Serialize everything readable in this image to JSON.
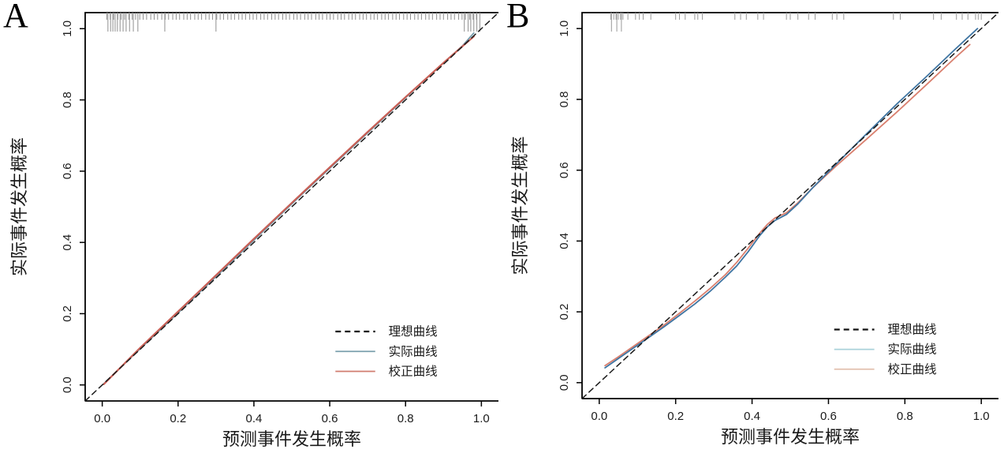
{
  "figure": {
    "background": "#ffffff",
    "panel_letters": [
      "A",
      "B"
    ]
  },
  "chart_data": [
    {
      "type": "line",
      "panel_label": "A",
      "xlabel": "预测事件发生概率",
      "ylabel": "实际事件发生概率",
      "xlim": [
        0,
        1
      ],
      "ylim": [
        0,
        1
      ],
      "grid": false,
      "ticks": {
        "values": [
          0.0,
          0.2,
          0.4,
          0.6,
          0.8,
          1.0
        ],
        "labels": [
          "0.0",
          "0.2",
          "0.4",
          "0.6",
          "0.8",
          "1.0"
        ]
      },
      "rug": {
        "color": "#8f8f8f",
        "short": [
          0.012,
          0.021,
          0.03,
          0.041,
          0.05,
          0.059,
          0.07,
          0.079,
          0.088,
          0.099,
          0.108,
          0.117,
          0.128,
          0.137,
          0.146,
          0.157,
          0.166,
          0.175,
          0.186,
          0.195,
          0.204,
          0.215,
          0.224,
          0.233,
          0.244,
          0.253,
          0.262,
          0.273,
          0.282,
          0.291,
          0.302,
          0.311,
          0.32,
          0.331,
          0.34,
          0.349,
          0.36,
          0.369,
          0.378,
          0.389,
          0.398,
          0.407,
          0.418,
          0.427,
          0.436,
          0.447,
          0.456,
          0.465,
          0.476,
          0.485,
          0.494,
          0.505,
          0.514,
          0.523,
          0.534,
          0.543,
          0.552,
          0.563,
          0.572,
          0.581,
          0.592,
          0.601,
          0.61,
          0.621,
          0.63,
          0.639,
          0.65,
          0.659,
          0.668,
          0.679,
          0.688,
          0.697,
          0.708,
          0.717,
          0.726,
          0.737,
          0.746,
          0.755,
          0.766,
          0.775,
          0.784,
          0.795,
          0.804,
          0.813,
          0.824,
          0.833,
          0.842,
          0.853,
          0.862,
          0.871,
          0.882,
          0.891,
          0.9,
          0.911,
          0.92,
          0.929,
          0.94,
          0.949,
          0.958,
          0.969,
          0.978,
          0.987
        ],
        "long": [
          0.015,
          0.022,
          0.028,
          0.034,
          0.04,
          0.047,
          0.055,
          0.063,
          0.072,
          0.082,
          0.094,
          0.165,
          0.3,
          0.955,
          0.965,
          0.972,
          0.98,
          0.988,
          0.996
        ]
      },
      "series": [
        {
          "name": "实际曲线",
          "role": "actual",
          "color": "#6d96a8",
          "width": 1.6,
          "dash": false,
          "points": [
            [
              0.004,
              0.004
            ],
            [
              0.1,
              0.101
            ],
            [
              0.2,
              0.202
            ],
            [
              0.3,
              0.304
            ],
            [
              0.4,
              0.406
            ],
            [
              0.5,
              0.508
            ],
            [
              0.6,
              0.608
            ],
            [
              0.7,
              0.707
            ],
            [
              0.8,
              0.806
            ],
            [
              0.9,
              0.904
            ],
            [
              0.95,
              0.952
            ],
            [
              0.98,
              0.988
            ]
          ]
        },
        {
          "name": "校正曲线",
          "role": "corrected",
          "color": "#c95f55",
          "width": 2.2,
          "dash": false,
          "points": [
            [
              0.004,
              0.002
            ],
            [
              0.1,
              0.104
            ],
            [
              0.2,
              0.206
            ],
            [
              0.3,
              0.308
            ],
            [
              0.4,
              0.41
            ],
            [
              0.5,
              0.511
            ],
            [
              0.6,
              0.611
            ],
            [
              0.7,
              0.71
            ],
            [
              0.8,
              0.808
            ],
            [
              0.9,
              0.904
            ],
            [
              0.98,
              0.978
            ]
          ]
        },
        {
          "name": "理想曲线",
          "role": "ideal",
          "color": "#1a1a1a",
          "width": 1.5,
          "dash": true,
          "points": [
            [
              -0.045,
              -0.045
            ],
            [
              1.045,
              1.045
            ]
          ]
        }
      ],
      "legend": {
        "position": "bottom-right",
        "entries": [
          {
            "label": "理想曲线",
            "color": "#111111",
            "dash": true
          },
          {
            "label": "实际曲线",
            "color": "#7ba0ad",
            "dash": false
          },
          {
            "label": "校正曲线",
            "color": "#d07c6f",
            "dash": false
          }
        ]
      }
    },
    {
      "type": "line",
      "panel_label": "B",
      "xlabel": "预测事件发生概率",
      "ylabel": "实际事件发生概率",
      "xlim": [
        0,
        1
      ],
      "ylim": [
        0,
        1
      ],
      "grid": false,
      "ticks": {
        "values": [
          0.0,
          0.2,
          0.4,
          0.6,
          0.8,
          1.0
        ],
        "labels": [
          "0.0",
          "0.2",
          "0.4",
          "0.6",
          "0.8",
          "1.0"
        ]
      },
      "rug": {
        "color": "#9a9a9a",
        "short": [
          0.03,
          0.038,
          0.044,
          0.05,
          0.056,
          0.062,
          0.075,
          0.095,
          0.105,
          0.115,
          0.135,
          0.2,
          0.21,
          0.225,
          0.25,
          0.258,
          0.27,
          0.355,
          0.37,
          0.385,
          0.415,
          0.43,
          0.49,
          0.5,
          0.52,
          0.548,
          0.565,
          0.61,
          0.622,
          0.64,
          0.77,
          0.788,
          0.875,
          0.895,
          0.935,
          0.95,
          0.965,
          0.985,
          0.992,
          1.0
        ],
        "long": [
          0.032,
          0.046,
          0.058
        ]
      },
      "series": [
        {
          "name": "校正曲线",
          "role": "corrected",
          "color": "#d97f6e",
          "width": 1.8,
          "dash": false,
          "points": [
            [
              0.015,
              0.048
            ],
            [
              0.05,
              0.073
            ],
            [
              0.09,
              0.103
            ],
            [
              0.13,
              0.133
            ],
            [
              0.17,
              0.163
            ],
            [
              0.21,
              0.196
            ],
            [
              0.25,
              0.23
            ],
            [
              0.29,
              0.266
            ],
            [
              0.33,
              0.305
            ],
            [
              0.36,
              0.34
            ],
            [
              0.39,
              0.38
            ],
            [
              0.42,
              0.422
            ],
            [
              0.44,
              0.447
            ],
            [
              0.46,
              0.465
            ],
            [
              0.49,
              0.48
            ],
            [
              0.52,
              0.508
            ],
            [
              0.56,
              0.552
            ],
            [
              0.62,
              0.612
            ],
            [
              0.7,
              0.688
            ],
            [
              0.78,
              0.765
            ],
            [
              0.86,
              0.845
            ],
            [
              0.93,
              0.916
            ],
            [
              0.97,
              0.955
            ]
          ]
        },
        {
          "name": "实际曲线",
          "role": "actual",
          "color": "#3f75a2",
          "width": 1.8,
          "dash": false,
          "points": [
            [
              0.015,
              0.042
            ],
            [
              0.05,
              0.068
            ],
            [
              0.09,
              0.098
            ],
            [
              0.13,
              0.128
            ],
            [
              0.17,
              0.158
            ],
            [
              0.21,
              0.19
            ],
            [
              0.25,
              0.222
            ],
            [
              0.29,
              0.258
            ],
            [
              0.33,
              0.298
            ],
            [
              0.36,
              0.33
            ],
            [
              0.39,
              0.37
            ],
            [
              0.42,
              0.415
            ],
            [
              0.44,
              0.44
            ],
            [
              0.46,
              0.458
            ],
            [
              0.49,
              0.475
            ],
            [
              0.52,
              0.505
            ],
            [
              0.56,
              0.552
            ],
            [
              0.62,
              0.617
            ],
            [
              0.7,
              0.703
            ],
            [
              0.78,
              0.788
            ],
            [
              0.86,
              0.868
            ],
            [
              0.93,
              0.94
            ],
            [
              0.99,
              1.0
            ]
          ]
        },
        {
          "name": "理想曲线",
          "role": "ideal",
          "color": "#1a1a1a",
          "width": 1.5,
          "dash": true,
          "points": [
            [
              -0.045,
              -0.045
            ],
            [
              1.045,
              1.045
            ]
          ]
        }
      ],
      "legend": {
        "position": "bottom-right",
        "entries": [
          {
            "label": "理想曲线",
            "color": "#111111",
            "dash": true
          },
          {
            "label": "实际曲线",
            "color": "#aad2da",
            "dash": false
          },
          {
            "label": "校正曲线",
            "color": "#e2c0ae",
            "dash": false
          }
        ]
      }
    }
  ]
}
